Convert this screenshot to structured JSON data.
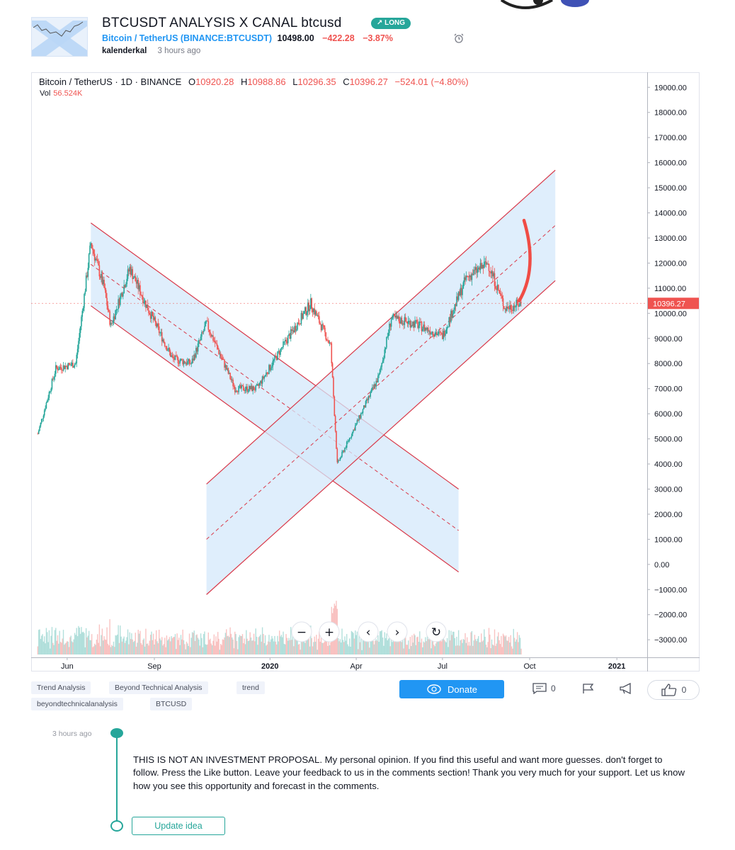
{
  "idea": {
    "title": "BTCUSDT ANALYSIS X CANAL btcusd",
    "badge": "LONG",
    "symbol_line": "Bitcoin / TetherUS (BINANCE:BTCUSDT)",
    "price": "10498.00",
    "change": "−422.28",
    "change_pct": "−3.87%",
    "author": "kalenderkal",
    "time": "3 hours ago"
  },
  "chart": {
    "legend_symbol": "Bitcoin / TetherUS · 1D · BINANCE",
    "open_label": "O",
    "open": "10920.28",
    "high_label": "H",
    "high": "10988.86",
    "low_label": "L",
    "low": "10296.35",
    "close_label": "C",
    "close": "10396.27",
    "change": "−524.01 (−4.80%)",
    "vol_label": "Vol",
    "vol": "56.524K",
    "price_tag": "10396.27",
    "zoom_out": "−",
    "zoom_in": "+",
    "scroll_left": "‹",
    "scroll_right": "›",
    "reset": "↻"
  },
  "chart_data": {
    "type": "candlestick",
    "title": "",
    "y_axis_ticks": [
      19000,
      18000,
      17000,
      16000,
      15000,
      14000,
      13000,
      12000,
      11000,
      10000,
      9000,
      8000,
      7000,
      6000,
      5000,
      4000,
      3000,
      2000,
      1000,
      0,
      -1000,
      -2000,
      -3000
    ],
    "y_axis_tick_labels": [
      "19000.00",
      "18000.00",
      "17000.00",
      "16000.00",
      "15000.00",
      "14000.00",
      "13000.00",
      "12000.00",
      "11000.00",
      "10000.00",
      "9000.00",
      "8000.00",
      "7000.00",
      "6000.00",
      "5000.00",
      "4000.00",
      "3000.00",
      "2000.00",
      "1000.00",
      "0.00",
      "−1000.00",
      "−2000.00",
      "−3000.00"
    ],
    "x_axis_ticks": [
      "Jun",
      "Sep",
      "2020",
      "Apr",
      "Jul",
      "Oct",
      "2021"
    ],
    "ylim": [
      -3700,
      19600
    ],
    "price_path": [
      [
        "2019-05-01",
        5200
      ],
      [
        "2019-05-20",
        7800
      ],
      [
        "2019-06-10",
        8000
      ],
      [
        "2019-06-26",
        12800
      ],
      [
        "2019-07-10",
        11000
      ],
      [
        "2019-07-17",
        9500
      ],
      [
        "2019-08-06",
        11800
      ],
      [
        "2019-08-25",
        10200
      ],
      [
        "2019-09-20",
        8200
      ],
      [
        "2019-10-10",
        8000
      ],
      [
        "2019-10-26",
        9600
      ],
      [
        "2019-11-25",
        7000
      ],
      [
        "2019-12-18",
        7000
      ],
      [
        "2020-01-18",
        8900
      ],
      [
        "2020-02-13",
        10400
      ],
      [
        "2020-03-05",
        8700
      ],
      [
        "2020-03-12",
        4000
      ],
      [
        "2020-04-25",
        7500
      ],
      [
        "2020-05-08",
        9800
      ],
      [
        "2020-06-01",
        9600
      ],
      [
        "2020-07-01",
        9100
      ],
      [
        "2020-07-26",
        11400
      ],
      [
        "2020-08-18",
        12000
      ],
      [
        "2020-09-05",
        10200
      ],
      [
        "2020-09-22",
        10396
      ]
    ],
    "drawings": [
      {
        "kind": "falling-channel",
        "upper": [
          [
            "2019-06-26",
            13600
          ],
          [
            "2020-07-18",
            3000
          ]
        ],
        "lower": [
          [
            "2019-06-26",
            10300
          ],
          [
            "2020-07-18",
            -300
          ]
        ],
        "mid_dashed": true
      },
      {
        "kind": "rising-channel",
        "upper": [
          [
            "2019-10-26",
            3200
          ],
          [
            "2020-10-28",
            15700
          ]
        ],
        "lower": [
          [
            "2019-10-26",
            -1200
          ],
          [
            "2020-10-28",
            11300
          ]
        ],
        "mid_dashed": true
      },
      {
        "kind": "marker-arrow",
        "color": "#f04c45",
        "points": [
          [
            "2020-09-20",
            10500
          ],
          [
            "2020-10-01",
            11800
          ],
          [
            "2020-09-25",
            13700
          ]
        ]
      }
    ],
    "last_price": 10396.27,
    "grid": false,
    "legend": "top-left"
  },
  "tags": [
    "Trend Analysis",
    "Beyond Technical Analysis",
    "trend",
    "beyondtechnicalanalysis",
    "BTCUSD"
  ],
  "actions": {
    "donate": "Donate",
    "comments_count": "0",
    "likes_count": "0"
  },
  "timeline": {
    "time": "3 hours ago",
    "description": "THIS IS NOT AN INVESTMENT PROPOSAL. My personal opinion. If you find this useful and want more guesses. don't forget to follow. Press the Like button. Leave your feedback to us in the comments section! Thank you very much for your support. Let us know how you see this opportunity and forecast in the comments.",
    "update_button": "Update idea"
  },
  "colors": {
    "accent": "#2196f3",
    "up": "#26a69a",
    "down": "#ef5350",
    "channel_fill": "#d4e8fb",
    "channel_line": "#d9394a",
    "marker": "#f04c45"
  }
}
